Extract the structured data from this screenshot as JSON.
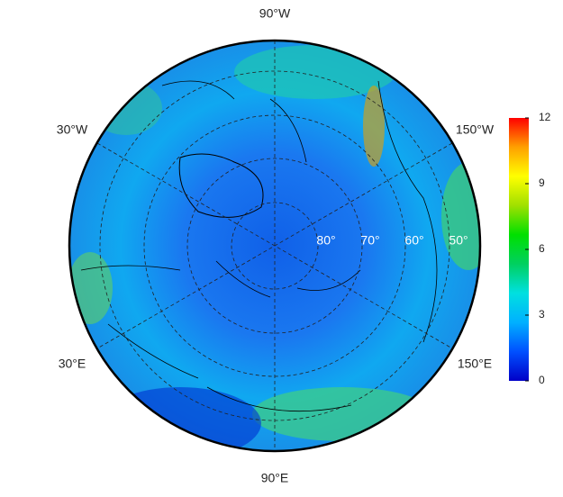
{
  "map": {
    "longitude_labels": [
      "90°W",
      "30°W",
      "150°W",
      "30°E",
      "150°E",
      "90°E"
    ],
    "latitude_labels": [
      "80°",
      "70°",
      "60°",
      "50°"
    ]
  },
  "colorbar": {
    "range": [
      0,
      12
    ],
    "ticks": [
      0,
      3,
      6,
      9,
      12
    ],
    "colors": [
      "#0000c8",
      "#0050ff",
      "#00b0ff",
      "#00e0e0",
      "#00d060",
      "#00e000",
      "#a0e000",
      "#ffff00",
      "#ffa000",
      "#ff0000"
    ]
  }
}
